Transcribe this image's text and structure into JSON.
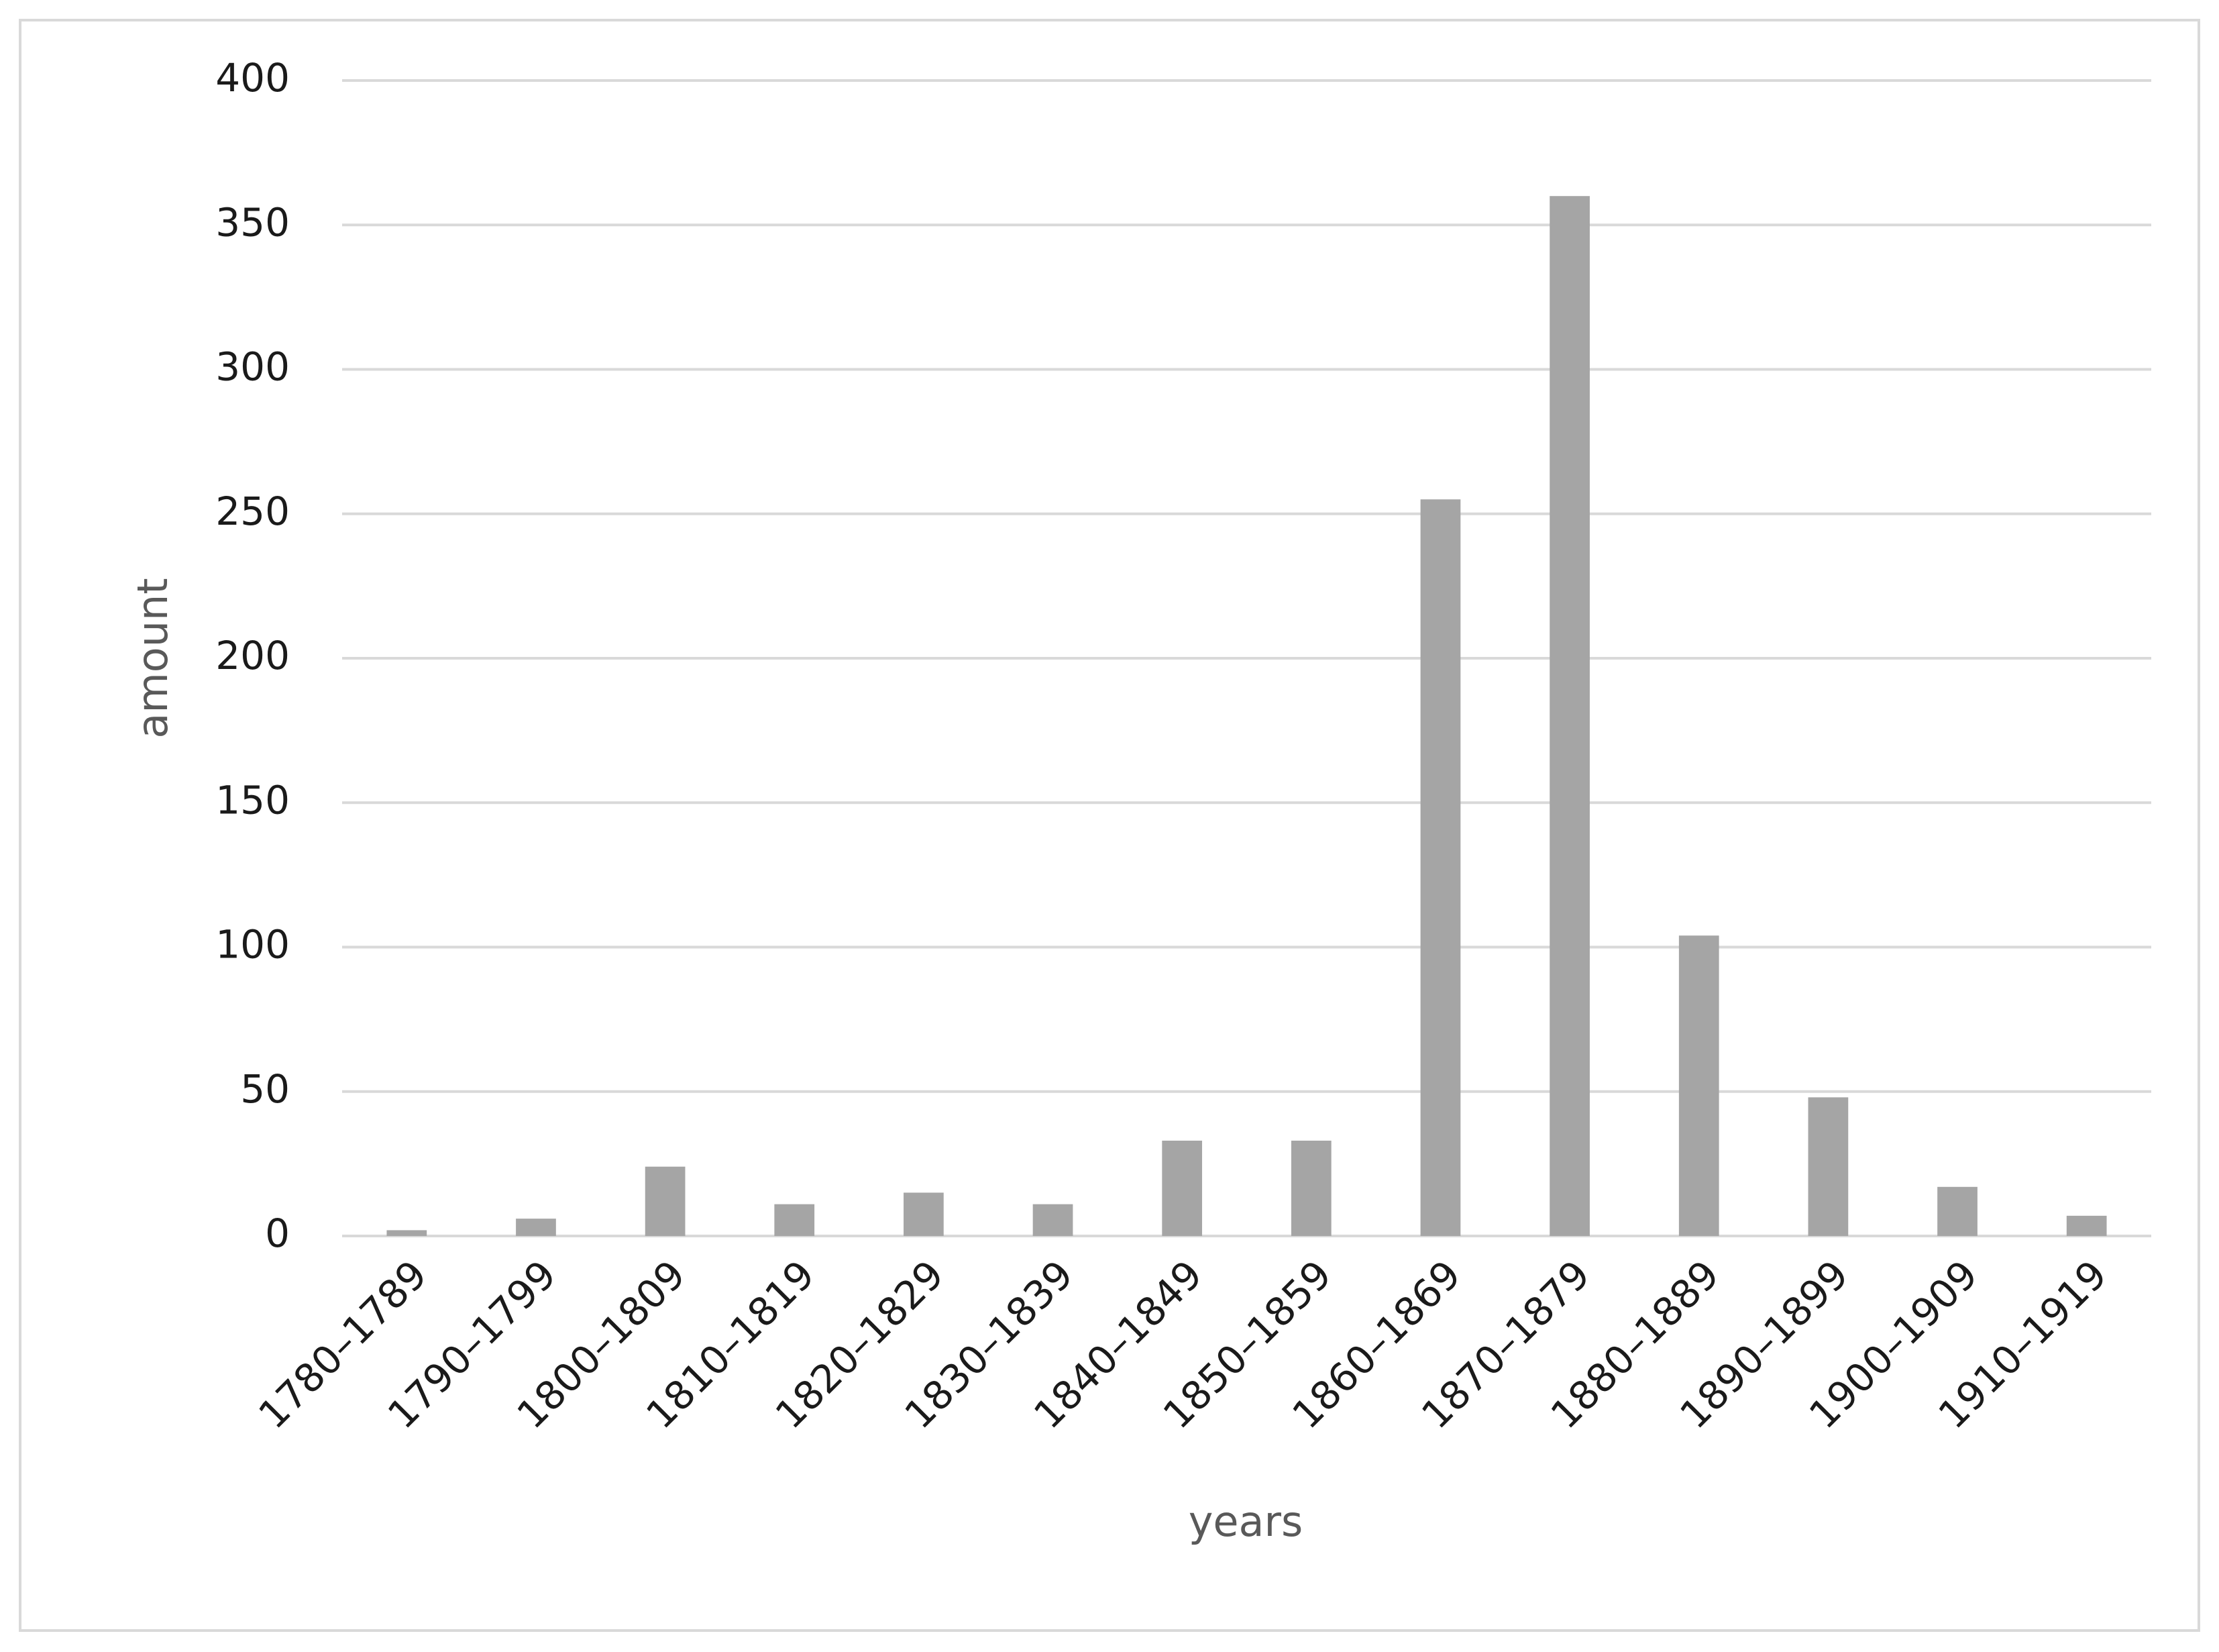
{
  "chart_data": {
    "type": "bar",
    "xlabel": "years",
    "ylabel": "amount",
    "categories": [
      "1780–1789",
      "1790–1799",
      "1800–1809",
      "1810–1819",
      "1820–1829",
      "1830–1839",
      "1840–1849",
      "1850–1859",
      "1860–1869",
      "1870–1879",
      "1880–1889",
      "1890–1899",
      "1900–1909",
      "1910–1919"
    ],
    "values": [
      2,
      6,
      24,
      11,
      15,
      11,
      33,
      33,
      255,
      360,
      104,
      48,
      17,
      7
    ],
    "color": "#a5a5a5",
    "ylim": [
      0,
      400
    ],
    "yticks": [
      0,
      50,
      100,
      150,
      200,
      250,
      300,
      350,
      400
    ],
    "grid": true
  }
}
